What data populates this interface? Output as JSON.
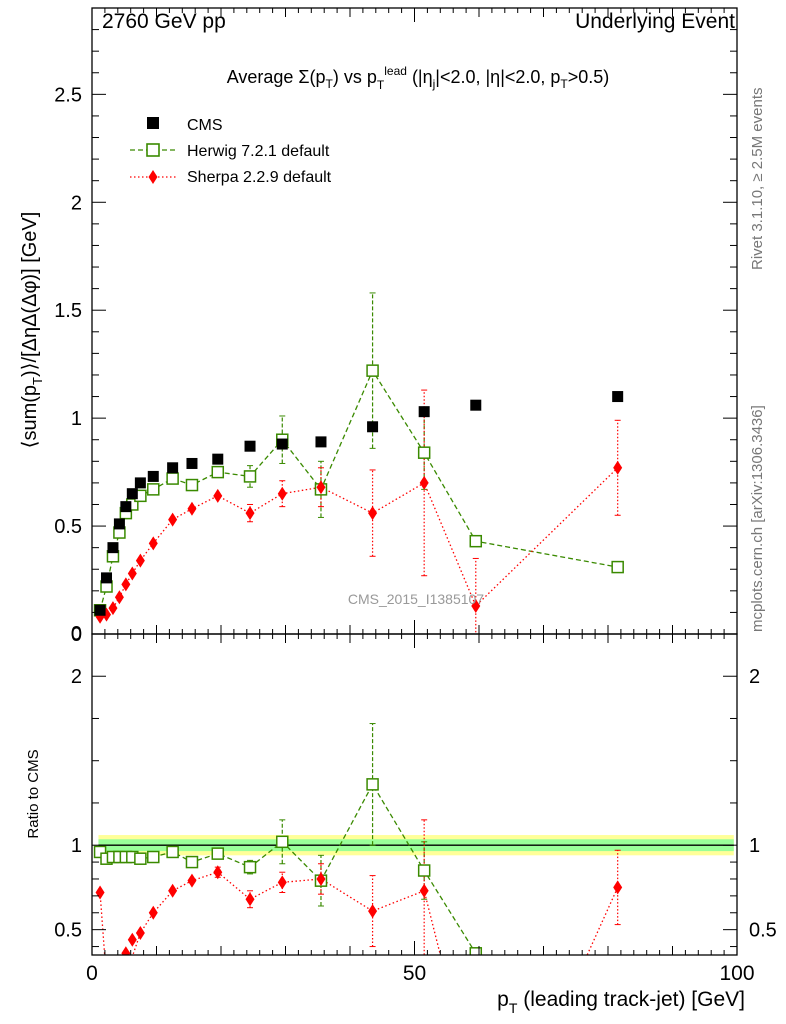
{
  "header": {
    "left": "2760 GeV pp",
    "right": "Underlying Event"
  },
  "side": {
    "rivet": "Rivet 3.1.10, ≥ 2.5M events",
    "mcplots": "mcplots.cern.ch [arXiv:1306.3436]"
  },
  "watermark": "CMS_2015_I1385107",
  "colors": {
    "cms": "#000000",
    "herwig": "#3a8a00",
    "sherpa": "#ff0000",
    "band_outer": "#ffff99",
    "band_inner": "#99ff99"
  },
  "chart_data": [
    {
      "type": "scatter",
      "title": "Average Σ(pT) vs pT lead (|ηj|<2.0, |η|<2.0, pT>0.5)",
      "xlabel": "pT (leading track-jet) [GeV]",
      "ylabel": "⟨sum(pT)⟩/[ΔηΔ(Δφ)] [GeV]",
      "xlim": [
        0,
        100
      ],
      "ylim": [
        0,
        2.9
      ],
      "y_ticks": [
        "0",
        "0.5",
        "1",
        "1.5",
        "2",
        "2.5"
      ],
      "x_ticks": [
        "0",
        "50",
        "100"
      ],
      "legend_position": "top-left",
      "series": [
        {
          "name": "CMS",
          "marker": "filled-square",
          "x": [
            1.25,
            2.25,
            3.25,
            4.25,
            5.25,
            6.25,
            7.5,
            9.5,
            12.5,
            15.5,
            19.5,
            24.5,
            29.5,
            35.5,
            43.5,
            51.5,
            59.5,
            81.5
          ],
          "y": [
            0.11,
            0.26,
            0.4,
            0.51,
            0.59,
            0.65,
            0.7,
            0.73,
            0.77,
            0.79,
            0.81,
            0.87,
            0.88,
            0.89,
            0.96,
            1.03,
            1.06,
            1.1
          ]
        },
        {
          "name": "Herwig 7.2.1 default",
          "marker": "open-square",
          "line": "dashed",
          "x": [
            1.25,
            2.25,
            3.25,
            4.25,
            5.25,
            6.25,
            7.5,
            9.5,
            12.5,
            15.5,
            19.5,
            24.5,
            29.5,
            35.5,
            43.5,
            51.5,
            59.5,
            81.5
          ],
          "y": [
            0.11,
            0.22,
            0.36,
            0.47,
            0.56,
            0.6,
            0.64,
            0.67,
            0.72,
            0.69,
            0.75,
            0.73,
            0.9,
            0.67,
            1.22,
            0.84,
            0.43,
            0.31
          ],
          "err": [
            0,
            0,
            0,
            0,
            0,
            0,
            0,
            0,
            0,
            0,
            0,
            0.05,
            0.11,
            0.13,
            0.36,
            0.17,
            0.02,
            0
          ]
        },
        {
          "name": "Sherpa 2.2.9 default",
          "marker": "filled-diamond",
          "line": "dotted",
          "x": [
            1.25,
            2.25,
            3.25,
            4.25,
            5.25,
            6.25,
            7.5,
            9.5,
            12.5,
            15.5,
            19.5,
            24.5,
            29.5,
            35.5,
            43.5,
            51.5,
            59.5,
            81.5
          ],
          "y": [
            0.08,
            0.09,
            0.12,
            0.17,
            0.23,
            0.28,
            0.34,
            0.42,
            0.53,
            0.58,
            0.64,
            0.56,
            0.65,
            0.68,
            0.56,
            0.7,
            0.13,
            0.77
          ],
          "err": [
            0,
            0,
            0,
            0,
            0,
            0,
            0,
            0,
            0,
            0,
            0,
            0.04,
            0.06,
            0.09,
            0.2,
            0.43,
            0.22,
            0.22
          ]
        }
      ]
    },
    {
      "type": "scatter",
      "ylabel": "Ratio to CMS",
      "xlim": [
        0,
        100
      ],
      "ylim": [
        0.35,
        2.25
      ],
      "y_ticks": [
        "0.5",
        "1",
        "2"
      ],
      "y_tick_values": [
        0.5,
        1,
        2
      ],
      "reference": 1.0,
      "band_inner_halfwidth": 0.035,
      "band_outer_halfwidth": 0.06,
      "series": [
        {
          "name": "Herwig 7.2.1 default",
          "x": [
            1.25,
            2.25,
            3.25,
            4.25,
            5.25,
            6.25,
            7.5,
            9.5,
            12.5,
            15.5,
            19.5,
            24.5,
            29.5,
            35.5,
            43.5,
            51.5,
            59.5
          ],
          "y": [
            0.96,
            0.92,
            0.93,
            0.93,
            0.93,
            0.93,
            0.92,
            0.93,
            0.96,
            0.9,
            0.95,
            0.87,
            1.02,
            0.79,
            1.36,
            0.85,
            0.36
          ],
          "err": [
            0,
            0,
            0,
            0,
            0,
            0,
            0,
            0,
            0,
            0,
            0,
            0.04,
            0.13,
            0.15,
            0.36,
            0.17,
            0.02
          ]
        },
        {
          "name": "Sherpa 2.2.9 default",
          "x": [
            1.25,
            7.5,
            9.5,
            12.5,
            15.5,
            19.5,
            24.5,
            29.5,
            35.5,
            43.5,
            51.5,
            81.5
          ],
          "y": [
            0.72,
            0.48,
            0.6,
            0.73,
            0.79,
            0.84,
            0.68,
            0.78,
            0.8,
            0.61,
            0.73,
            0.75
          ],
          "err": [
            0,
            0,
            0,
            0,
            0,
            0.03,
            0.05,
            0.06,
            0.09,
            0.21,
            0.42,
            0.22
          ]
        }
      ]
    }
  ]
}
